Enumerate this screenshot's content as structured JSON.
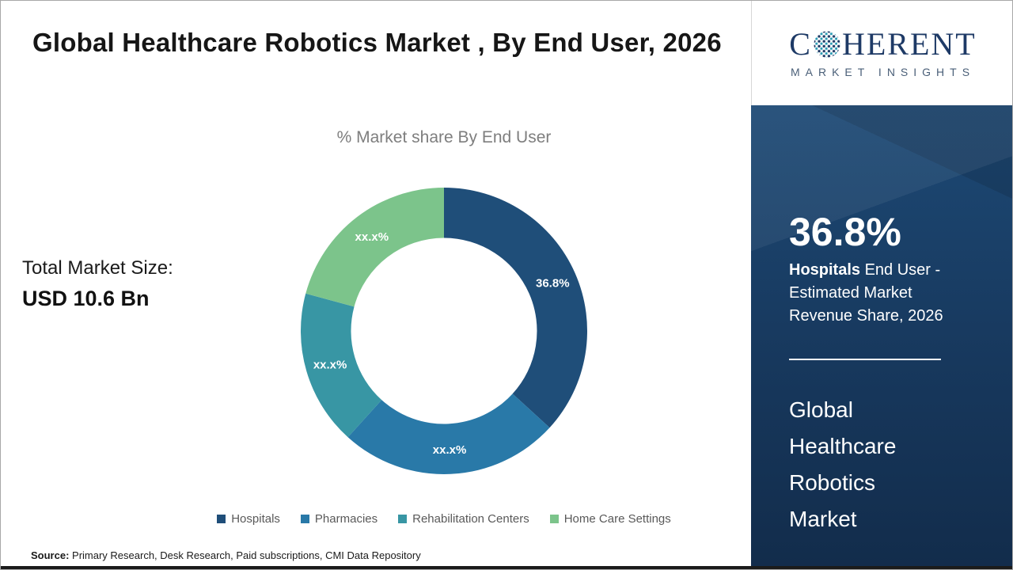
{
  "header": {
    "title": "Global Healthcare Robotics Market , By End User, 2026"
  },
  "chart_data": {
    "type": "pie",
    "donut": true,
    "title": "% Market share By End User",
    "legend_position": "bottom",
    "segments": [
      {
        "label": "Hospitals",
        "value": 36.8,
        "display": "36.8%",
        "color": "#1f4e79"
      },
      {
        "label": "Pharmacies",
        "value": 24.9,
        "display": "xx.x%",
        "color": "#2979a8"
      },
      {
        "label": "Rehabilitation Centers",
        "value": 17.5,
        "display": "xx.x%",
        "color": "#3896a4"
      },
      {
        "label": "Home Care Settings",
        "value": 20.8,
        "display": "xx.x%",
        "color": "#7cc48b"
      }
    ]
  },
  "market_size": {
    "label": "Total Market Size:",
    "value": "USD 10.6 Bn"
  },
  "source": {
    "prefix": "Source:",
    "text": " Primary Research, Desk Research, Paid subscriptions, CMI Data Repository"
  },
  "logo": {
    "part1": "C",
    "part2": "HERENT",
    "subtitle": "MARKET INSIGHTS"
  },
  "sidebar": {
    "stat_value": "36.8%",
    "stat_bold": "Hospitals",
    "stat_rest": " End User - Estimated Market Revenue Share, 2026",
    "market_name": "Global Healthcare Robotics Market",
    "accent_color": "#17385d"
  }
}
